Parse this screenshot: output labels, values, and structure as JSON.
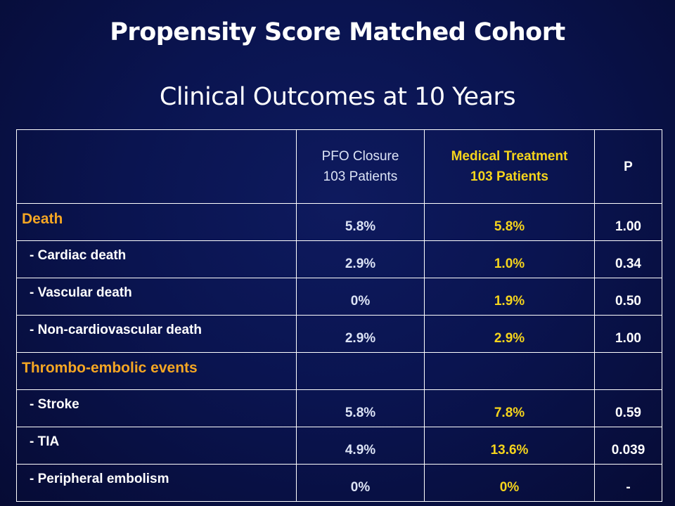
{
  "title": "Propensity Score Matched Cohort",
  "subtitle": "Clinical Outcomes at 10 Years",
  "table": {
    "headers": {
      "pfo_line1": "PFO Closure",
      "pfo_line2": "103 Patients",
      "med_line1": "Medical Treatment",
      "med_line2": "103 Patients",
      "p": "P"
    },
    "rows": [
      {
        "label": "Death",
        "pfo": "5.8%",
        "med": "5.8%",
        "p": "1.00"
      },
      {
        "label": "- Cardiac death",
        "pfo": "2.9%",
        "med": "1.0%",
        "p": "0.34"
      },
      {
        "label": "- Vascular death",
        "pfo": "0%",
        "med": "1.9%",
        "p": "0.50"
      },
      {
        "label": "- Non-cardiovascular death",
        "pfo": "2.9%",
        "med": "2.9%",
        "p": "1.00"
      },
      {
        "label": "Thrombo-embolic events",
        "pfo": "",
        "med": "",
        "p": ""
      },
      {
        "label": "- Stroke",
        "pfo": "5.8%",
        "med": "7.8%",
        "p": "0.59"
      },
      {
        "label": "- TIA",
        "pfo": "4.9%",
        "med": "13.6%",
        "p": "0.039"
      },
      {
        "label": "- Peripheral embolism",
        "pfo": "0%",
        "med": "0%",
        "p": "-"
      }
    ]
  },
  "colors": {
    "background": "#0a1450",
    "section_label": "#f5a623",
    "medical_treatment": "#f5d41c",
    "text": "#ffffff",
    "border": "#ffffff"
  }
}
